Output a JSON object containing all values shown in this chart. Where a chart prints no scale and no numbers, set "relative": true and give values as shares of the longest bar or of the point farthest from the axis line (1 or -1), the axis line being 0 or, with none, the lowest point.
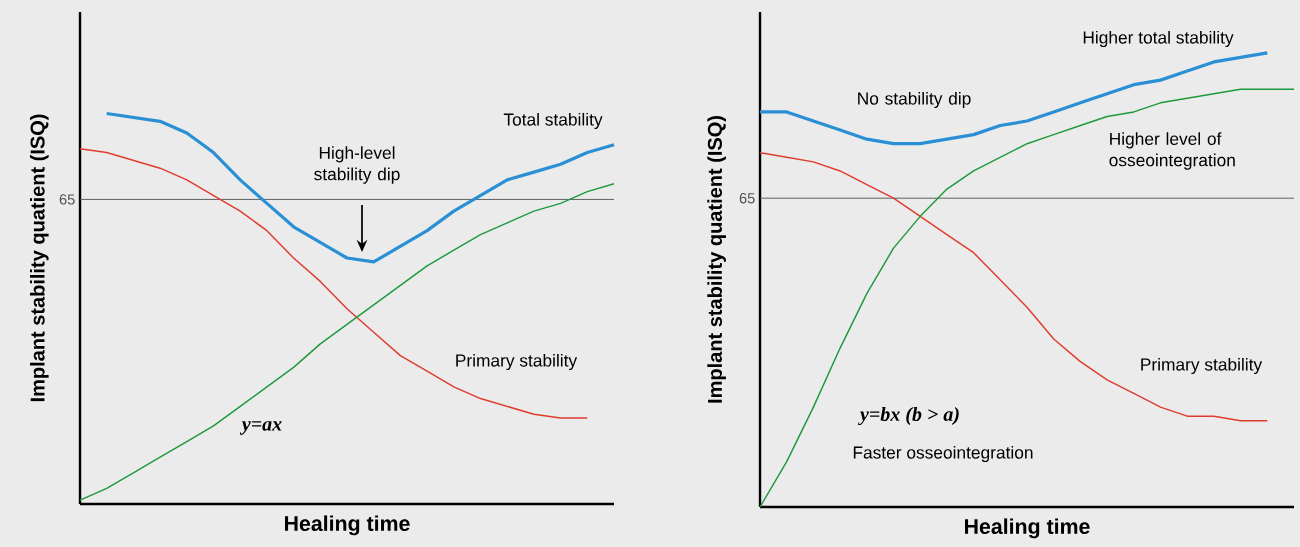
{
  "chart_data": [
    {
      "type": "line",
      "relative": true,
      "xlabel": "Healing time",
      "ylabel": "Implant stability quatient (ISQ)",
      "categories": [
        null,
        null,
        null,
        null,
        null,
        null,
        null,
        null,
        null,
        null,
        null,
        null,
        null,
        null,
        null,
        null,
        null,
        null,
        null,
        null,
        null
      ],
      "series": [
        {
          "name": "Total stability",
          "color": "#2a8fd4",
          "values": [
            null,
            1.0,
            0.99,
            0.98,
            0.95,
            0.9,
            0.83,
            0.77,
            0.71,
            0.67,
            0.63,
            0.62,
            0.66,
            0.7,
            0.75,
            0.79,
            0.83,
            0.85,
            0.87,
            0.9,
            0.92
          ]
        },
        {
          "name": "Primary stability",
          "color": "#e03c2e",
          "values": [
            0.91,
            0.9,
            0.88,
            0.86,
            0.83,
            0.79,
            0.75,
            0.7,
            0.63,
            0.57,
            0.5,
            0.44,
            0.38,
            0.34,
            0.3,
            0.27,
            0.25,
            0.23,
            0.22,
            0.22,
            null
          ]
        },
        {
          "name": "y=ax",
          "color": "#1e9a3c",
          "values": [
            0.01,
            0.04,
            0.08,
            0.12,
            0.16,
            0.2,
            0.25,
            0.3,
            0.35,
            0.41,
            0.46,
            0.51,
            0.56,
            0.61,
            0.65,
            0.69,
            0.72,
            0.75,
            0.77,
            0.8,
            0.82
          ]
        }
      ],
      "ref_lines": [
        {
          "axis": "y",
          "value": 0.78,
          "color": "#555555"
        }
      ],
      "annotations": [
        "High-level stability dip",
        "65"
      ]
    },
    {
      "type": "line",
      "relative": true,
      "xlabel": "Healing time",
      "ylabel": "Implant stability quatient (ISQ)",
      "categories": [
        null,
        null,
        null,
        null,
        null,
        null,
        null,
        null,
        null,
        null,
        null,
        null,
        null,
        null,
        null,
        null,
        null,
        null,
        null,
        null,
        null
      ],
      "series": [
        {
          "name": "Higher total stability",
          "color": "#2a8fd4",
          "values": [
            0.87,
            0.87,
            0.85,
            0.83,
            0.81,
            0.8,
            0.8,
            0.81,
            0.82,
            0.84,
            0.85,
            0.87,
            0.89,
            0.91,
            0.93,
            0.94,
            0.96,
            0.98,
            0.99,
            1.0,
            null
          ]
        },
        {
          "name": "Primary stability",
          "color": "#e03c2e",
          "values": [
            0.78,
            0.77,
            0.76,
            0.74,
            0.71,
            0.68,
            0.64,
            0.6,
            0.56,
            0.5,
            0.44,
            0.37,
            0.32,
            0.28,
            0.25,
            0.22,
            0.2,
            0.2,
            0.19,
            0.19,
            null
          ]
        },
        {
          "name": "Higher level of osseointegration",
          "color": "#1e9a3c",
          "values": [
            0.0,
            0.1,
            0.22,
            0.35,
            0.47,
            0.57,
            0.64,
            0.7,
            0.74,
            0.77,
            0.8,
            0.82,
            0.84,
            0.86,
            0.87,
            0.89,
            0.9,
            0.91,
            0.92,
            0.92,
            0.92
          ]
        }
      ],
      "ref_lines": [
        {
          "axis": "y",
          "value": 0.68,
          "color": "#555555"
        }
      ],
      "annotations": [
        "No stability dip",
        "y=bx (b > a)",
        "Faster osseointegration",
        "65"
      ]
    }
  ]
}
